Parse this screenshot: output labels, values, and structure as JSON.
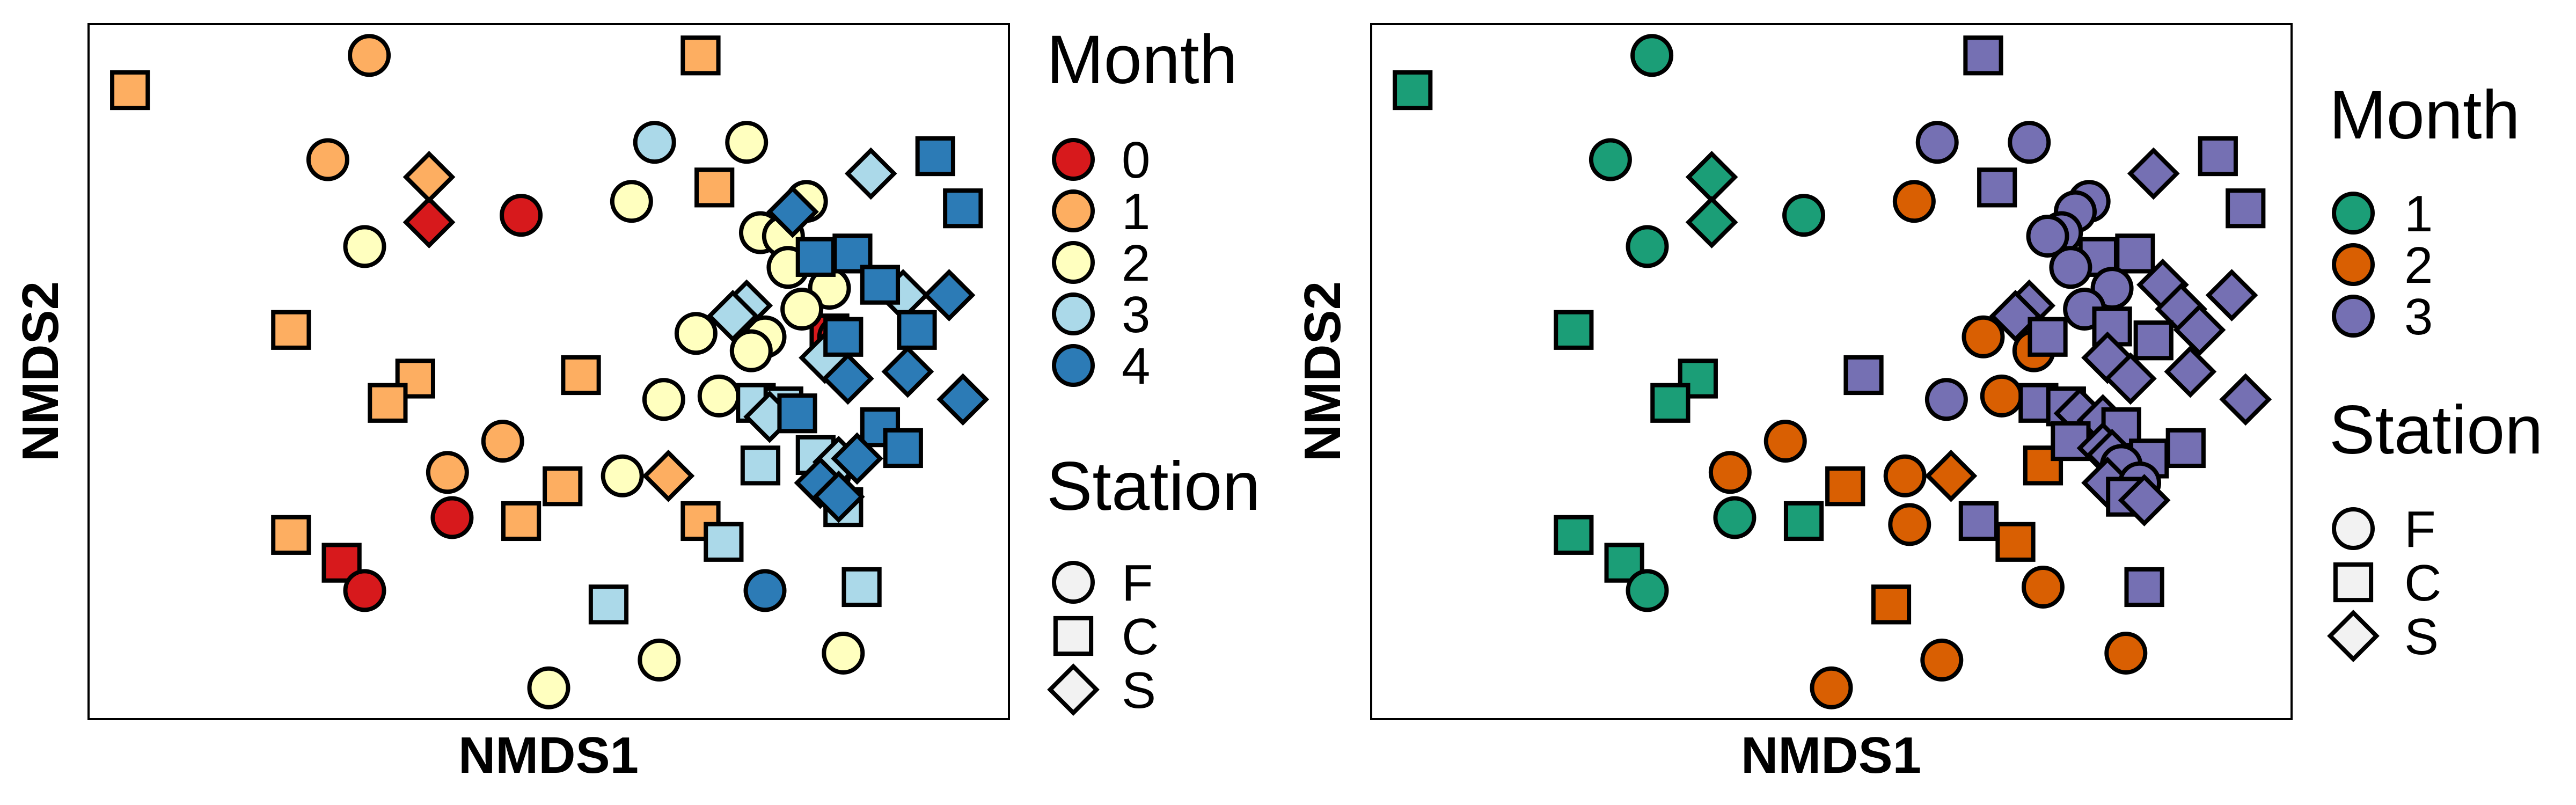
{
  "station_shapes": {
    "F": "circle",
    "C": "square",
    "S": "diamond"
  },
  "charts": [
    {
      "xlabel": "NMDS1",
      "ylabel": "NMDS2",
      "legend_month_title": "Month",
      "legend_station_title": "Station",
      "months": [
        {
          "label": "0",
          "color": "#d7191c"
        },
        {
          "label": "1",
          "color": "#fdae61"
        },
        {
          "label": "2",
          "color": "#ffffbf"
        },
        {
          "label": "3",
          "color": "#abd9e9"
        },
        {
          "label": "4",
          "color": "#2c7bb6"
        }
      ],
      "stations": [
        {
          "label": "F",
          "shape": "circle"
        },
        {
          "label": "C",
          "shape": "square"
        },
        {
          "label": "S",
          "shape": "diamond"
        }
      ]
    },
    {
      "xlabel": "NMDS1",
      "ylabel": "NMDS2",
      "legend_month_title": "Month",
      "legend_station_title": "Station",
      "months": [
        {
          "label": "1",
          "color": "#1b9e77"
        },
        {
          "label": "2",
          "color": "#d95f02"
        },
        {
          "label": "3",
          "color": "#7570b3"
        }
      ],
      "stations": [
        {
          "label": "F",
          "shape": "circle"
        },
        {
          "label": "C",
          "shape": "square"
        },
        {
          "label": "S",
          "shape": "diamond"
        }
      ]
    }
  ],
  "chart_data": [
    {
      "type": "scatter",
      "title": "",
      "xlabel": "NMDS1",
      "ylabel": "NMDS2",
      "xlim": [
        0,
        100
      ],
      "ylim": [
        0,
        100
      ],
      "grid": false,
      "legend_position": "right",
      "x_ticks": false,
      "y_ticks": false,
      "series": [
        {
          "name": "0",
          "color": "#d7191c",
          "points": [
            {
              "x": 47,
              "y": 72.5,
              "station": "F"
            },
            {
              "x": 37,
              "y": 71.5,
              "station": "S"
            },
            {
              "x": 80.5,
              "y": 55.5,
              "station": "C"
            },
            {
              "x": 81.5,
              "y": 55,
              "station": "F"
            },
            {
              "x": 39.5,
              "y": 29,
              "station": "F"
            },
            {
              "x": 27.5,
              "y": 22.5,
              "station": "C"
            },
            {
              "x": 30,
              "y": 18.5,
              "station": "F"
            }
          ]
        },
        {
          "name": "1",
          "color": "#fdae61",
          "points": [
            {
              "x": 30.5,
              "y": 95.5,
              "station": "F"
            },
            {
              "x": 66.5,
              "y": 95.5,
              "station": "C"
            },
            {
              "x": 4.5,
              "y": 90.5,
              "station": "C"
            },
            {
              "x": 26,
              "y": 80.5,
              "station": "F"
            },
            {
              "x": 37,
              "y": 78,
              "station": "S"
            },
            {
              "x": 68,
              "y": 76.5,
              "station": "C"
            },
            {
              "x": 22,
              "y": 56,
              "station": "C"
            },
            {
              "x": 53.5,
              "y": 49.5,
              "station": "C"
            },
            {
              "x": 35.5,
              "y": 49,
              "station": "C"
            },
            {
              "x": 32.5,
              "y": 45.5,
              "station": "C"
            },
            {
              "x": 45,
              "y": 40,
              "station": "F"
            },
            {
              "x": 39,
              "y": 35.5,
              "station": "F"
            },
            {
              "x": 51.5,
              "y": 33.5,
              "station": "C"
            },
            {
              "x": 63,
              "y": 35,
              "station": "S"
            },
            {
              "x": 47,
              "y": 28.5,
              "station": "C"
            },
            {
              "x": 66.5,
              "y": 28.5,
              "station": "C"
            },
            {
              "x": 22,
              "y": 26.5,
              "station": "C"
            }
          ]
        },
        {
          "name": "2",
          "color": "#ffffbf",
          "points": [
            {
              "x": 71.5,
              "y": 83,
              "station": "F"
            },
            {
              "x": 78,
              "y": 74.5,
              "station": "F"
            },
            {
              "x": 59,
              "y": 74.5,
              "station": "F"
            },
            {
              "x": 30,
              "y": 68,
              "station": "F"
            },
            {
              "x": 73,
              "y": 70,
              "station": "F"
            },
            {
              "x": 75.5,
              "y": 69.5,
              "station": "F"
            },
            {
              "x": 76,
              "y": 65,
              "station": "F"
            },
            {
              "x": 80.5,
              "y": 62,
              "station": "F"
            },
            {
              "x": 77.5,
              "y": 59,
              "station": "F"
            },
            {
              "x": 73.5,
              "y": 55,
              "station": "F"
            },
            {
              "x": 66,
              "y": 55.5,
              "station": "F"
            },
            {
              "x": 72,
              "y": 53,
              "station": "F"
            },
            {
              "x": 68.5,
              "y": 46.5,
              "station": "F"
            },
            {
              "x": 62.5,
              "y": 46,
              "station": "F"
            },
            {
              "x": 58,
              "y": 35,
              "station": "F"
            },
            {
              "x": 80.5,
              "y": 35,
              "station": "F"
            },
            {
              "x": 62,
              "y": 8.5,
              "station": "F"
            },
            {
              "x": 82,
              "y": 9.5,
              "station": "F"
            },
            {
              "x": 50,
              "y": 4.5,
              "station": "F"
            }
          ]
        },
        {
          "name": "3",
          "color": "#abd9e9",
          "points": [
            {
              "x": 61.5,
              "y": 83,
              "station": "F"
            },
            {
              "x": 85,
              "y": 78.5,
              "station": "S"
            },
            {
              "x": 88.5,
              "y": 61,
              "station": "S"
            },
            {
              "x": 71.5,
              "y": 59.5,
              "station": "S"
            },
            {
              "x": 70,
              "y": 58,
              "station": "S"
            },
            {
              "x": 80,
              "y": 52,
              "station": "S"
            },
            {
              "x": 72.5,
              "y": 45.5,
              "station": "C"
            },
            {
              "x": 75.5,
              "y": 45,
              "station": "C"
            },
            {
              "x": 74,
              "y": 43.5,
              "station": "S"
            },
            {
              "x": 79,
              "y": 38,
              "station": "C"
            },
            {
              "x": 81.5,
              "y": 37,
              "station": "S"
            },
            {
              "x": 73,
              "y": 36.5,
              "station": "C"
            },
            {
              "x": 82,
              "y": 30.5,
              "station": "C"
            },
            {
              "x": 69,
              "y": 25.5,
              "station": "C"
            },
            {
              "x": 56.5,
              "y": 16.5,
              "station": "C"
            },
            {
              "x": 84,
              "y": 19,
              "station": "C"
            }
          ]
        },
        {
          "name": "4",
          "color": "#2c7bb6",
          "points": [
            {
              "x": 92,
              "y": 81,
              "station": "C"
            },
            {
              "x": 95,
              "y": 73.5,
              "station": "C"
            },
            {
              "x": 76.5,
              "y": 73,
              "station": "S"
            },
            {
              "x": 79,
              "y": 66.5,
              "station": "C"
            },
            {
              "x": 83,
              "y": 67,
              "station": "C"
            },
            {
              "x": 86,
              "y": 62.5,
              "station": "C"
            },
            {
              "x": 93.5,
              "y": 61,
              "station": "S"
            },
            {
              "x": 90,
              "y": 56,
              "station": "C"
            },
            {
              "x": 82,
              "y": 55,
              "station": "C"
            },
            {
              "x": 89,
              "y": 50,
              "station": "S"
            },
            {
              "x": 82.5,
              "y": 49,
              "station": "S"
            },
            {
              "x": 95,
              "y": 46,
              "station": "S"
            },
            {
              "x": 77,
              "y": 44,
              "station": "C"
            },
            {
              "x": 86,
              "y": 42,
              "station": "C"
            },
            {
              "x": 88.5,
              "y": 39,
              "station": "C"
            },
            {
              "x": 83.5,
              "y": 37.5,
              "station": "S"
            },
            {
              "x": 79.5,
              "y": 34,
              "station": "S"
            },
            {
              "x": 81.5,
              "y": 32,
              "station": "S"
            },
            {
              "x": 73.5,
              "y": 18.5,
              "station": "F"
            }
          ]
        }
      ]
    },
    {
      "type": "scatter",
      "title": "",
      "xlabel": "NMDS1",
      "ylabel": "NMDS2",
      "xlim": [
        0,
        100
      ],
      "ylim": [
        0,
        100
      ],
      "grid": false,
      "legend_position": "right",
      "x_ticks": false,
      "y_ticks": false,
      "series": [
        {
          "name": "1",
          "color": "#1b9e77",
          "points": [
            {
              "x": 30.5,
              "y": 95.5,
              "station": "F"
            },
            {
              "x": 4.5,
              "y": 90.5,
              "station": "C"
            },
            {
              "x": 26,
              "y": 80.5,
              "station": "F"
            },
            {
              "x": 37,
              "y": 78,
              "station": "S"
            },
            {
              "x": 37,
              "y": 71.5,
              "station": "S"
            },
            {
              "x": 47,
              "y": 72.5,
              "station": "F"
            },
            {
              "x": 30,
              "y": 68,
              "station": "F"
            },
            {
              "x": 22,
              "y": 56,
              "station": "C"
            },
            {
              "x": 35.5,
              "y": 49,
              "station": "C"
            },
            {
              "x": 32.5,
              "y": 45.5,
              "station": "C"
            },
            {
              "x": 39.5,
              "y": 29,
              "station": "F"
            },
            {
              "x": 47,
              "y": 28.5,
              "station": "C"
            },
            {
              "x": 22,
              "y": 26.5,
              "station": "C"
            },
            {
              "x": 27.5,
              "y": 22.5,
              "station": "C"
            },
            {
              "x": 30,
              "y": 18.5,
              "station": "F"
            }
          ]
        },
        {
          "name": "2",
          "color": "#d95f02",
          "points": [
            {
              "x": 59,
              "y": 74.5,
              "station": "F"
            },
            {
              "x": 66.5,
              "y": 55,
              "station": "F"
            },
            {
              "x": 72,
              "y": 53,
              "station": "F"
            },
            {
              "x": 68.5,
              "y": 46.5,
              "station": "F"
            },
            {
              "x": 45,
              "y": 40,
              "station": "F"
            },
            {
              "x": 39,
              "y": 35.5,
              "station": "F"
            },
            {
              "x": 51.5,
              "y": 33.5,
              "station": "C"
            },
            {
              "x": 58,
              "y": 35,
              "station": "F"
            },
            {
              "x": 63,
              "y": 35,
              "station": "S"
            },
            {
              "x": 73,
              "y": 36.5,
              "station": "C"
            },
            {
              "x": 58.5,
              "y": 28,
              "station": "F"
            },
            {
              "x": 70,
              "y": 25.5,
              "station": "C"
            },
            {
              "x": 73,
              "y": 19,
              "station": "F"
            },
            {
              "x": 56.5,
              "y": 16.5,
              "station": "C"
            },
            {
              "x": 82,
              "y": 9.5,
              "station": "F"
            },
            {
              "x": 62,
              "y": 8.5,
              "station": "F"
            },
            {
              "x": 50,
              "y": 4.5,
              "station": "F"
            }
          ]
        },
        {
          "name": "3",
          "color": "#7570b3",
          "points": [
            {
              "x": 66.5,
              "y": 95.5,
              "station": "C"
            },
            {
              "x": 61.5,
              "y": 83,
              "station": "F"
            },
            {
              "x": 71.5,
              "y": 83,
              "station": "F"
            },
            {
              "x": 92,
              "y": 81,
              "station": "C"
            },
            {
              "x": 85,
              "y": 78.5,
              "station": "S"
            },
            {
              "x": 68,
              "y": 76.5,
              "station": "C"
            },
            {
              "x": 78,
              "y": 74.5,
              "station": "F"
            },
            {
              "x": 95,
              "y": 73.5,
              "station": "C"
            },
            {
              "x": 76.5,
              "y": 73,
              "station": "F"
            },
            {
              "x": 75,
              "y": 70,
              "station": "F"
            },
            {
              "x": 73.5,
              "y": 69.5,
              "station": "F"
            },
            {
              "x": 79,
              "y": 66.5,
              "station": "C"
            },
            {
              "x": 83,
              "y": 67,
              "station": "C"
            },
            {
              "x": 76,
              "y": 65,
              "station": "F"
            },
            {
              "x": 86,
              "y": 62.5,
              "station": "S"
            },
            {
              "x": 80.5,
              "y": 62,
              "station": "F"
            },
            {
              "x": 93.5,
              "y": 61,
              "station": "S"
            },
            {
              "x": 71.5,
              "y": 59.5,
              "station": "S"
            },
            {
              "x": 70,
              "y": 58,
              "station": "S"
            },
            {
              "x": 77.5,
              "y": 59,
              "station": "F"
            },
            {
              "x": 88,
              "y": 59,
              "station": "S"
            },
            {
              "x": 80.5,
              "y": 56.5,
              "station": "C"
            },
            {
              "x": 90,
              "y": 56,
              "station": "S"
            },
            {
              "x": 73.5,
              "y": 55,
              "station": "C"
            },
            {
              "x": 85,
              "y": 54.5,
              "station": "C"
            },
            {
              "x": 80,
              "y": 52,
              "station": "S"
            },
            {
              "x": 53.5,
              "y": 49.5,
              "station": "C"
            },
            {
              "x": 82.5,
              "y": 49,
              "station": "S"
            },
            {
              "x": 89,
              "y": 50,
              "station": "S"
            },
            {
              "x": 95,
              "y": 46,
              "station": "S"
            },
            {
              "x": 62.5,
              "y": 46,
              "station": "F"
            },
            {
              "x": 72.5,
              "y": 45.5,
              "station": "C"
            },
            {
              "x": 75.5,
              "y": 45,
              "station": "C"
            },
            {
              "x": 77,
              "y": 44,
              "station": "S"
            },
            {
              "x": 79.5,
              "y": 43,
              "station": "S"
            },
            {
              "x": 81.5,
              "y": 42,
              "station": "C"
            },
            {
              "x": 76,
              "y": 40,
              "station": "C"
            },
            {
              "x": 79.5,
              "y": 39,
              "station": "S"
            },
            {
              "x": 88.5,
              "y": 39,
              "station": "C"
            },
            {
              "x": 80.5,
              "y": 38,
              "station": "S"
            },
            {
              "x": 84.5,
              "y": 37.5,
              "station": "C"
            },
            {
              "x": 81.5,
              "y": 36.5,
              "station": "F"
            },
            {
              "x": 80,
              "y": 34,
              "station": "S"
            },
            {
              "x": 83.5,
              "y": 34,
              "station": "F"
            },
            {
              "x": 82,
              "y": 32,
              "station": "C"
            },
            {
              "x": 84,
              "y": 31.5,
              "station": "S"
            },
            {
              "x": 66,
              "y": 28.5,
              "station": "C"
            },
            {
              "x": 84,
              "y": 19,
              "station": "C"
            }
          ]
        }
      ]
    }
  ]
}
